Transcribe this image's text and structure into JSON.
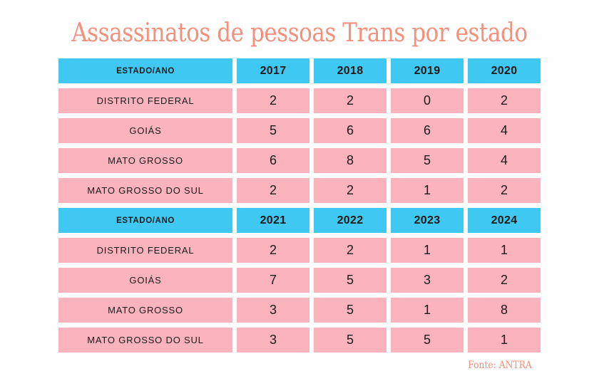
{
  "title": "Assassinatos de pessoas Trans por estado",
  "source": "Fonte: ANTRA",
  "colors": {
    "header_bg": "#3ec8f2",
    "row_bg": "#fbb3be",
    "title": "#f4907c"
  },
  "tables": [
    {
      "header": [
        "ESTADO/ANO",
        "2017",
        "2018",
        "2019",
        "2020"
      ],
      "rows": [
        [
          "DISTRITO FEDERAL",
          "2",
          "2",
          "0",
          "2"
        ],
        [
          "GOIÁS",
          "5",
          "6",
          "6",
          "4"
        ],
        [
          "MATO GROSSO",
          "6",
          "8",
          "5",
          "4"
        ],
        [
          "MATO GROSSO DO SUL",
          "2",
          "2",
          "1",
          "2"
        ]
      ]
    },
    {
      "header": [
        "ESTADO/ANO",
        "2021",
        "2022",
        "2023",
        "2024"
      ],
      "rows": [
        [
          "DISTRITO FEDERAL",
          "2",
          "2",
          "1",
          "1"
        ],
        [
          "GOIÁS",
          "7",
          "5",
          "3",
          "2"
        ],
        [
          "MATO GROSSO",
          "3",
          "5",
          "1",
          "8"
        ],
        [
          "MATO GROSSO DO SUL",
          "3",
          "5",
          "5",
          "1"
        ]
      ]
    }
  ]
}
